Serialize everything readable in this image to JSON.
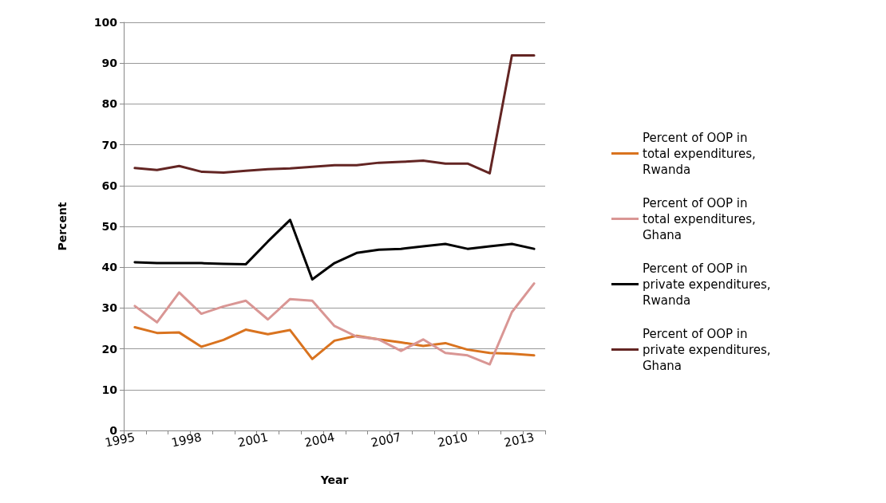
{
  "chart_data": {
    "type": "line",
    "xlabel": "Year",
    "ylabel": "Percent",
    "categories": [
      "1995",
      null,
      null,
      "1998",
      null,
      null,
      "2001",
      null,
      null,
      "2004",
      null,
      null,
      "2007",
      null,
      null,
      "2010",
      null,
      null,
      "2013"
    ],
    "series": [
      {
        "name": "Percent of OOP in total expenditures, Rwanda",
        "color": "#d9731f",
        "values": [
          25.3,
          23.9,
          24,
          20.5,
          22.2,
          24.7,
          23.6,
          24.6,
          17.5,
          22,
          23.2,
          22.3,
          21.6,
          20.7,
          21.4,
          19.8,
          19,
          18.8,
          18.4
        ]
      },
      {
        "name": "Percent of OOP in total expenditures, Ghana",
        "color": "#d99694",
        "values": [
          30.5,
          26.5,
          33.8,
          28.6,
          30.4,
          31.8,
          27.2,
          32.2,
          31.8,
          25.6,
          23,
          22.3,
          19.5,
          22.3,
          19,
          18.4,
          16.2,
          29,
          36
        ]
      },
      {
        "name": "Percent of OOP in private expenditures, Rwanda",
        "color": "#000000",
        "values": [
          41.2,
          41,
          41,
          41,
          40.8,
          40.7,
          46.3,
          51.6,
          37,
          41,
          43.5,
          44.3,
          44.5,
          45.1,
          45.7,
          44.5,
          45.1,
          45.7,
          44.5
        ]
      },
      {
        "name": "Percent of OOP in private expenditures, Ghana",
        "color": "#632523",
        "values": [
          64.3,
          63.8,
          64.8,
          63.4,
          63.2,
          63.6,
          64,
          64.2,
          64.6,
          65,
          65,
          65.6,
          65.8,
          66.1,
          65.4,
          65.4,
          63,
          91.9,
          91.9
        ]
      }
    ],
    "ylim": [
      0,
      100
    ],
    "yticks": [
      0,
      10,
      20,
      30,
      40,
      50,
      60,
      70,
      80,
      90,
      100
    ],
    "grid": "y",
    "legend": "right",
    "marker": "none",
    "line_style": "solid"
  }
}
